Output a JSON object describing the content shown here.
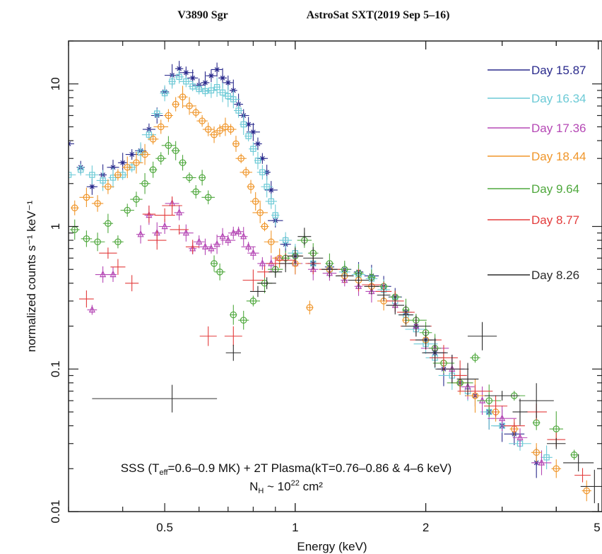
{
  "header": {
    "left_title": "V3890 Sgr",
    "right_title": "AstroSat SXT(2019 Sep 5–16)"
  },
  "chart_data": {
    "type": "scatter",
    "xlabel": "Energy (keV)",
    "ylabel": "normalized counts s⁻¹ keV⁻¹",
    "xscale": "log",
    "yscale": "log",
    "xlim": [
      0.3,
      5.1
    ],
    "ylim": [
      0.01,
      20
    ],
    "x_ticks": [
      {
        "value": 0.5,
        "label": "0.5"
      },
      {
        "value": 1,
        "label": "1"
      },
      {
        "value": 2,
        "label": "2"
      },
      {
        "value": 5,
        "label": "5"
      }
    ],
    "y_ticks": [
      {
        "value": 0.01,
        "label": "0.01"
      },
      {
        "value": 0.1,
        "label": "0.1"
      },
      {
        "value": 1,
        "label": "1"
      },
      {
        "value": 10,
        "label": "10"
      }
    ],
    "legend_position": "right",
    "annotation": {
      "line1_prefix": "SSS (T",
      "line1_sub": "eff",
      "line1_suffix": "=0.6–0.9 MK) + 2T Plasma(kT=0.76–0.86 & 4–6 keV)",
      "line2_prefix": "N",
      "line2_sub": "H",
      "line2_mid": " ~ 10",
      "line2_sup": "22",
      "line2_suffix": " cm²"
    },
    "representative_error": {
      "x": 0.52,
      "y": 0.062,
      "xerr_low": 0.18,
      "xerr_high": 0.14,
      "yerr_factor": 1.25
    },
    "series": [
      {
        "name": "Day 15.87",
        "color": "#2a2a8c",
        "marker": "star",
        "points": [
          [
            0.3,
            3.8
          ],
          [
            0.32,
            2.6
          ],
          [
            0.34,
            1.9
          ],
          [
            0.36,
            2.3
          ],
          [
            0.38,
            2.6
          ],
          [
            0.4,
            2.8
          ],
          [
            0.42,
            3.2
          ],
          [
            0.44,
            3.4
          ],
          [
            0.46,
            4.8
          ],
          [
            0.48,
            6.0
          ],
          [
            0.5,
            8.8
          ],
          [
            0.52,
            11.5
          ],
          [
            0.54,
            12.8
          ],
          [
            0.56,
            12.0
          ],
          [
            0.58,
            11.0
          ],
          [
            0.6,
            9.8
          ],
          [
            0.62,
            10.2
          ],
          [
            0.64,
            11.4
          ],
          [
            0.66,
            12.6
          ],
          [
            0.68,
            11.0
          ],
          [
            0.7,
            10.2
          ],
          [
            0.72,
            9.0
          ],
          [
            0.74,
            7.2
          ],
          [
            0.76,
            6.0
          ],
          [
            0.78,
            5.2
          ],
          [
            0.8,
            4.6
          ],
          [
            0.82,
            3.8
          ],
          [
            0.84,
            3.0
          ],
          [
            0.86,
            2.4
          ],
          [
            0.88,
            1.8
          ],
          [
            0.9,
            1.1
          ],
          [
            0.95,
            0.75
          ],
          [
            1.0,
            0.62
          ],
          [
            1.1,
            0.55
          ],
          [
            1.2,
            0.52
          ],
          [
            1.3,
            0.5
          ],
          [
            1.4,
            0.48
          ],
          [
            1.5,
            0.45
          ],
          [
            1.6,
            0.38
          ],
          [
            1.7,
            0.32
          ],
          [
            1.8,
            0.25
          ],
          [
            1.9,
            0.2
          ],
          [
            2.0,
            0.16
          ],
          [
            2.1,
            0.13
          ],
          [
            2.2,
            0.1
          ],
          [
            2.4,
            0.08
          ],
          [
            2.6,
            0.065
          ],
          [
            2.8,
            0.05
          ],
          [
            3.0,
            0.04
          ],
          [
            3.2,
            0.035
          ],
          [
            3.6,
            0.022
          ]
        ]
      },
      {
        "name": "Day 16.34",
        "color": "#6ccad6",
        "marker": "square",
        "points": [
          [
            0.3,
            2.3
          ],
          [
            0.32,
            2.5
          ],
          [
            0.34,
            2.3
          ],
          [
            0.36,
            2.1
          ],
          [
            0.38,
            2.2
          ],
          [
            0.4,
            2.3
          ],
          [
            0.42,
            2.6
          ],
          [
            0.44,
            3.3
          ],
          [
            0.46,
            4.4
          ],
          [
            0.48,
            6.2
          ],
          [
            0.5,
            8.6
          ],
          [
            0.52,
            10.4
          ],
          [
            0.54,
            11.2
          ],
          [
            0.56,
            10.4
          ],
          [
            0.58,
            9.6
          ],
          [
            0.6,
            9.2
          ],
          [
            0.62,
            8.9
          ],
          [
            0.64,
            9.0
          ],
          [
            0.66,
            9.5
          ],
          [
            0.68,
            8.7
          ],
          [
            0.7,
            8.2
          ],
          [
            0.72,
            7.8
          ],
          [
            0.74,
            6.5
          ],
          [
            0.76,
            5.2
          ],
          [
            0.78,
            4.3
          ],
          [
            0.8,
            3.5
          ],
          [
            0.82,
            2.9
          ],
          [
            0.84,
            2.4
          ],
          [
            0.86,
            1.9
          ],
          [
            0.88,
            1.5
          ],
          [
            0.9,
            1.2
          ],
          [
            0.95,
            0.8
          ],
          [
            1.0,
            0.65
          ],
          [
            1.1,
            0.55
          ],
          [
            1.2,
            0.5
          ],
          [
            1.3,
            0.48
          ],
          [
            1.4,
            0.46
          ],
          [
            1.5,
            0.43
          ],
          [
            1.6,
            0.36
          ],
          [
            1.7,
            0.3
          ],
          [
            1.8,
            0.24
          ],
          [
            1.9,
            0.19
          ],
          [
            2.0,
            0.15
          ],
          [
            2.1,
            0.12
          ],
          [
            2.3,
            0.09
          ],
          [
            2.5,
            0.07
          ],
          [
            2.8,
            0.05
          ],
          [
            3.0,
            0.04
          ],
          [
            3.3,
            0.03
          ],
          [
            3.8,
            0.024
          ]
        ]
      },
      {
        "name": "Day 17.36",
        "color": "#b548b5",
        "marker": "triangle",
        "points": [
          [
            0.34,
            0.26
          ],
          [
            0.36,
            0.46
          ],
          [
            0.38,
            0.46
          ],
          [
            0.44,
            0.88
          ],
          [
            0.46,
            1.2
          ],
          [
            0.48,
            0.9
          ],
          [
            0.5,
            1.0
          ],
          [
            0.52,
            1.45
          ],
          [
            0.54,
            1.25
          ],
          [
            0.56,
            0.9
          ],
          [
            0.58,
            0.7
          ],
          [
            0.6,
            0.78
          ],
          [
            0.62,
            0.72
          ],
          [
            0.64,
            0.7
          ],
          [
            0.66,
            0.75
          ],
          [
            0.68,
            0.85
          ],
          [
            0.7,
            0.8
          ],
          [
            0.72,
            0.9
          ],
          [
            0.74,
            0.92
          ],
          [
            0.76,
            0.85
          ],
          [
            0.78,
            0.72
          ],
          [
            0.8,
            0.65
          ],
          [
            0.84,
            0.55
          ],
          [
            0.88,
            0.55
          ],
          [
            0.92,
            0.6
          ],
          [
            1.0,
            0.55
          ],
          [
            1.1,
            0.5
          ],
          [
            1.2,
            0.47
          ],
          [
            1.3,
            0.42
          ],
          [
            1.4,
            0.38
          ],
          [
            1.5,
            0.35
          ],
          [
            1.7,
            0.28
          ],
          [
            1.9,
            0.2
          ],
          [
            2.1,
            0.14
          ],
          [
            2.3,
            0.1
          ],
          [
            2.5,
            0.075
          ],
          [
            2.7,
            0.06
          ],
          [
            3.0,
            0.045
          ],
          [
            3.3,
            0.033
          ],
          [
            3.7,
            0.022
          ]
        ]
      },
      {
        "name": "Day 18.44",
        "color": "#f0962a",
        "marker": "circle",
        "points": [
          [
            0.31,
            1.35
          ],
          [
            0.33,
            1.6
          ],
          [
            0.35,
            1.45
          ],
          [
            0.37,
            1.9
          ],
          [
            0.39,
            2.3
          ],
          [
            0.41,
            2.6
          ],
          [
            0.43,
            2.8
          ],
          [
            0.45,
            3.2
          ],
          [
            0.47,
            4.1
          ],
          [
            0.49,
            5.0
          ],
          [
            0.51,
            6.0
          ],
          [
            0.53,
            7.2
          ],
          [
            0.55,
            8.1
          ],
          [
            0.57,
            7.0
          ],
          [
            0.59,
            6.3
          ],
          [
            0.61,
            5.5
          ],
          [
            0.63,
            4.8
          ],
          [
            0.65,
            4.4
          ],
          [
            0.67,
            4.7
          ],
          [
            0.69,
            5.0
          ],
          [
            0.71,
            4.8
          ],
          [
            0.73,
            3.8
          ],
          [
            0.75,
            3.0
          ],
          [
            0.77,
            2.4
          ],
          [
            0.79,
            1.9
          ],
          [
            0.81,
            1.5
          ],
          [
            0.83,
            1.25
          ],
          [
            0.85,
            1.0
          ],
          [
            0.88,
            0.78
          ],
          [
            0.92,
            0.6
          ],
          [
            1.0,
            0.55
          ],
          [
            1.08,
            0.27
          ],
          [
            1.2,
            0.5
          ],
          [
            1.3,
            0.45
          ],
          [
            1.4,
            0.42
          ],
          [
            1.5,
            0.38
          ],
          [
            1.6,
            0.3
          ],
          [
            1.8,
            0.22
          ],
          [
            2.0,
            0.16
          ],
          [
            2.2,
            0.11
          ],
          [
            2.4,
            0.08
          ],
          [
            2.6,
            0.065
          ],
          [
            2.9,
            0.05
          ],
          [
            3.2,
            0.038
          ],
          [
            3.6,
            0.026
          ],
          [
            4.0,
            0.02
          ],
          [
            4.7,
            0.014
          ]
        ]
      },
      {
        "name": "Day 9.64",
        "color": "#4fa83d",
        "marker": "circle",
        "points": [
          [
            0.31,
            0.95
          ],
          [
            0.33,
            0.82
          ],
          [
            0.35,
            0.78
          ],
          [
            0.37,
            1.05
          ],
          [
            0.39,
            0.78
          ],
          [
            0.41,
            1.3
          ],
          [
            0.43,
            1.55
          ],
          [
            0.45,
            2.0
          ],
          [
            0.47,
            2.5
          ],
          [
            0.49,
            3.0
          ],
          [
            0.51,
            3.7
          ],
          [
            0.53,
            3.4
          ],
          [
            0.55,
            2.8
          ],
          [
            0.57,
            2.2
          ],
          [
            0.59,
            1.75
          ],
          [
            0.61,
            2.2
          ],
          [
            0.63,
            1.6
          ],
          [
            0.65,
            0.55
          ],
          [
            0.67,
            0.48
          ],
          [
            0.72,
            0.24
          ],
          [
            0.76,
            0.22
          ],
          [
            0.8,
            0.3
          ],
          [
            0.85,
            0.4
          ],
          [
            0.9,
            0.5
          ],
          [
            0.95,
            0.6
          ],
          [
            1.0,
            0.62
          ],
          [
            1.05,
            0.8
          ],
          [
            1.1,
            0.65
          ],
          [
            1.2,
            0.55
          ],
          [
            1.3,
            0.5
          ],
          [
            1.4,
            0.47
          ],
          [
            1.5,
            0.44
          ],
          [
            1.6,
            0.38
          ],
          [
            1.7,
            0.32
          ],
          [
            1.8,
            0.26
          ],
          [
            1.9,
            0.22
          ],
          [
            2.0,
            0.18
          ],
          [
            2.1,
            0.14
          ],
          [
            2.2,
            0.11
          ],
          [
            2.4,
            0.08
          ],
          [
            2.6,
            0.12
          ],
          [
            2.8,
            0.06
          ],
          [
            3.2,
            0.065
          ],
          [
            3.6,
            0.042
          ],
          [
            4.0,
            0.038
          ],
          [
            4.4,
            0.025
          ]
        ]
      },
      {
        "name": "Day 8.77",
        "color": "#e33b3b",
        "marker": "plus",
        "points": [
          [
            0.33,
            0.31
          ],
          [
            0.37,
            0.65
          ],
          [
            0.39,
            0.52
          ],
          [
            0.42,
            0.4
          ],
          [
            0.46,
            1.22
          ],
          [
            0.48,
            0.8
          ],
          [
            0.5,
            1.2
          ],
          [
            0.52,
            1.4
          ],
          [
            0.54,
            0.95
          ],
          [
            0.58,
            0.72
          ],
          [
            0.63,
            0.17
          ],
          [
            0.72,
            0.17
          ],
          [
            0.8,
            0.42
          ],
          [
            0.85,
            0.48
          ],
          [
            0.9,
            0.55
          ],
          [
            0.95,
            0.58
          ],
          [
            1.0,
            0.62
          ],
          [
            1.1,
            0.55
          ],
          [
            1.2,
            0.5
          ],
          [
            1.3,
            0.45
          ],
          [
            1.4,
            0.42
          ],
          [
            1.5,
            0.39
          ],
          [
            1.6,
            0.35
          ],
          [
            1.7,
            0.3
          ],
          [
            1.8,
            0.25
          ],
          [
            1.9,
            0.2
          ],
          [
            2.0,
            0.16
          ],
          [
            2.2,
            0.12
          ],
          [
            2.4,
            0.09
          ],
          [
            2.6,
            0.07
          ],
          [
            2.9,
            0.055
          ],
          [
            3.2,
            0.04
          ],
          [
            3.6,
            0.05
          ],
          [
            4.0,
            0.032
          ],
          [
            4.6,
            0.018
          ]
        ]
      },
      {
        "name": "Day 8.26",
        "color": "#2b2b2b",
        "marker": "plus",
        "points": [
          [
            0.72,
            0.13
          ],
          [
            0.82,
            0.35
          ],
          [
            0.86,
            0.4
          ],
          [
            0.9,
            0.48
          ],
          [
            0.95,
            0.55
          ],
          [
            1.0,
            0.62
          ],
          [
            1.05,
            0.85
          ],
          [
            1.1,
            0.6
          ],
          [
            1.2,
            0.5
          ],
          [
            1.3,
            0.45
          ],
          [
            1.4,
            0.42
          ],
          [
            1.5,
            0.38
          ],
          [
            1.6,
            0.33
          ],
          [
            1.7,
            0.28
          ],
          [
            1.8,
            0.24
          ],
          [
            1.9,
            0.2
          ],
          [
            2.0,
            0.16
          ],
          [
            2.1,
            0.13
          ],
          [
            2.3,
            0.1
          ],
          [
            2.5,
            0.085
          ],
          [
            2.7,
            0.17
          ],
          [
            3.0,
            0.065
          ],
          [
            3.3,
            0.05
          ],
          [
            3.6,
            0.06
          ],
          [
            4.0,
            0.03
          ],
          [
            4.5,
            0.022
          ],
          [
            4.9,
            0.015
          ]
        ]
      }
    ]
  }
}
